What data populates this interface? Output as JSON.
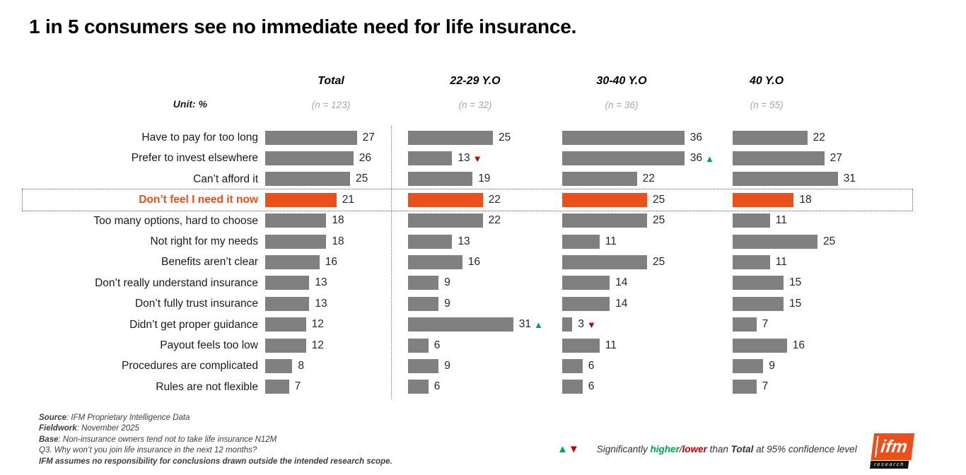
{
  "chart_data": {
    "type": "bar",
    "title": "1 in 5 consumers see no immediate need for life insurance.",
    "unit_label": "Unit: %",
    "xlim": [
      0,
      40
    ],
    "grid": false,
    "columns": [
      {
        "label": "Total",
        "n": "(n = 123)"
      },
      {
        "label": "22-29 Y.O",
        "n": "(n = 32)"
      },
      {
        "label": "30-40 Y.O",
        "n": "(n = 36)"
      },
      {
        "label": "40 Y.O",
        "n": "(n = 55)"
      }
    ],
    "rows": [
      {
        "label": "Have to pay for too long",
        "values": [
          27,
          25,
          36,
          22
        ],
        "markers": [
          null,
          null,
          null,
          null
        ],
        "highlight": false
      },
      {
        "label": "Prefer to invest elsewhere",
        "values": [
          26,
          13,
          36,
          27
        ],
        "markers": [
          null,
          "lower",
          "higher",
          null
        ],
        "highlight": false
      },
      {
        "label": "Can’t afford it",
        "values": [
          25,
          19,
          22,
          31
        ],
        "markers": [
          null,
          null,
          null,
          null
        ],
        "highlight": false
      },
      {
        "label": "Don’t feel I need it now",
        "values": [
          21,
          22,
          25,
          18
        ],
        "markers": [
          null,
          null,
          null,
          null
        ],
        "highlight": true
      },
      {
        "label": "Too many options, hard to choose",
        "values": [
          18,
          22,
          25,
          11
        ],
        "markers": [
          null,
          null,
          null,
          null
        ],
        "highlight": false
      },
      {
        "label": "Not right for my needs",
        "values": [
          18,
          13,
          11,
          25
        ],
        "markers": [
          null,
          null,
          null,
          null
        ],
        "highlight": false
      },
      {
        "label": "Benefits aren’t clear",
        "values": [
          16,
          16,
          25,
          11
        ],
        "markers": [
          null,
          null,
          null,
          null
        ],
        "highlight": false
      },
      {
        "label": "Don’t really understand insurance",
        "values": [
          13,
          9,
          14,
          15
        ],
        "markers": [
          null,
          null,
          null,
          null
        ],
        "highlight": false
      },
      {
        "label": "Don’t fully trust insurance",
        "values": [
          13,
          9,
          14,
          15
        ],
        "markers": [
          null,
          null,
          null,
          null
        ],
        "highlight": false
      },
      {
        "label": "Didn’t get proper guidance",
        "values": [
          12,
          31,
          3,
          7
        ],
        "markers": [
          null,
          "higher",
          "lower",
          null
        ],
        "highlight": false
      },
      {
        "label": "Payout feels too low",
        "values": [
          12,
          6,
          11,
          16
        ],
        "markers": [
          null,
          null,
          null,
          null
        ],
        "highlight": false
      },
      {
        "label": "Procedures are complicated",
        "values": [
          8,
          9,
          6,
          9
        ],
        "markers": [
          null,
          null,
          null,
          null
        ],
        "highlight": false
      },
      {
        "label": "Rules are not flexible",
        "values": [
          7,
          6,
          6,
          7
        ],
        "markers": [
          null,
          null,
          null,
          null
        ],
        "highlight": false
      }
    ],
    "colors": {
      "bar": "#808080",
      "highlight": "#e8511c",
      "higher": "#00a651",
      "lower": "#c00000"
    },
    "legend": {
      "up_icon": "▲",
      "down_icon": "▼",
      "seg1": "Significantly ",
      "higher": "higher",
      "slash": "/",
      "lower": "lower",
      "seg2": " than ",
      "total": "Total",
      "seg3": " at 95% confidence level"
    }
  },
  "footer": {
    "lines": [
      {
        "bold": "Source",
        "rest": ": IFM Proprietary Intelligence Data"
      },
      {
        "bold": "Fieldwork",
        "rest": ": November 2025"
      },
      {
        "bold": "Base",
        "rest": ": Non-insurance owners tend not to take life insurance N12M"
      },
      {
        "bold": "",
        "rest": "Q3. Why won’t you join life insurance in the next 12 months?"
      },
      {
        "bold": "IFM assumes no responsibility for conclusions drawn outside the intended research scope.",
        "rest": ""
      }
    ]
  },
  "logo": {
    "name": "ifm",
    "sub": "research"
  }
}
